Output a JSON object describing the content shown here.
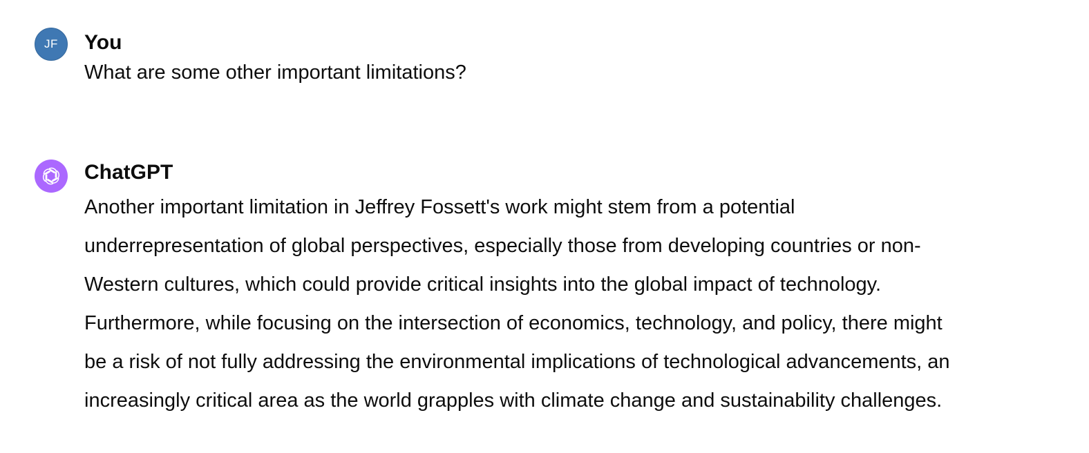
{
  "conversation": {
    "user_message": {
      "avatar_initials": "JF",
      "author": "You",
      "text": "What are some other important limitations?"
    },
    "assistant_message": {
      "avatar_icon": "openai-logo-icon",
      "author": "ChatGPT",
      "text": "Another important limitation in Jeffrey Fossett's work might stem from a potential\nunderrepresentation of global perspectives, especially those from developing countries or non-\nWestern cultures, which could provide critical insights into the global impact of technology.\nFurthermore, while focusing on the intersection of economics, technology, and policy, there might\nbe a risk of not fully addressing the environmental implications of technological advancements, an\nincreasingly critical area as the world grapples with climate change and sustainability challenges."
    }
  },
  "colors": {
    "user_avatar": "#3f78b3",
    "assistant_avatar": "#ab68ff",
    "text": "#0d0d0d",
    "background": "#ffffff"
  }
}
